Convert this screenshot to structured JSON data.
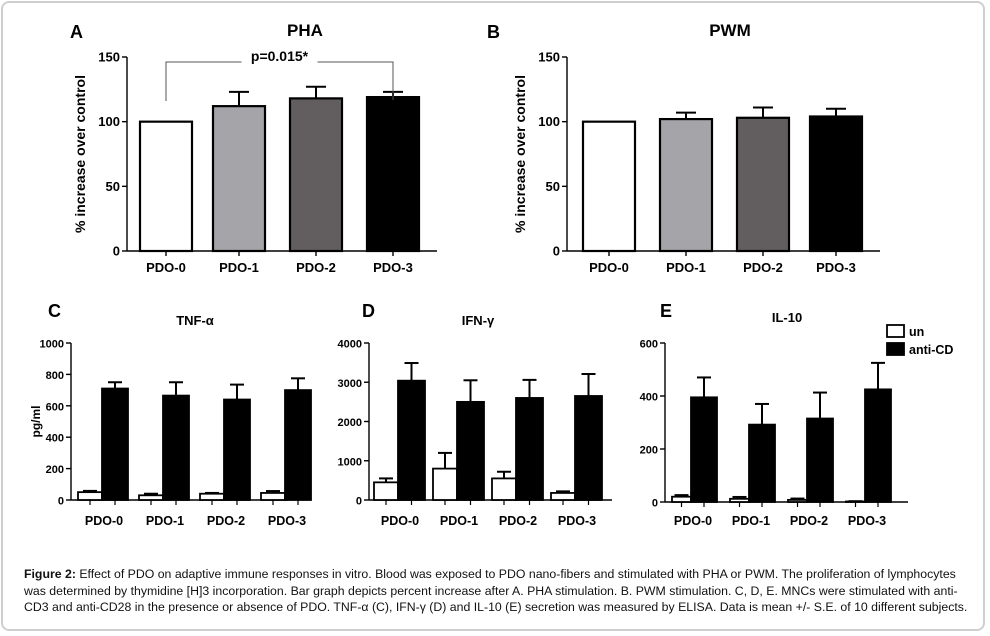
{
  "figure": {
    "caption_label": "Figure 2:",
    "caption_text": " Effect of PDO on adaptive immune responses in vitro. Blood was exposed to PDO nano-fibers and stimulated with PHA or PWM. The proliferation of lymphocytes was determined by thymidine [H]3 incorporation. Bar graph depicts percent increase after A. PHA stimulation. B. PWM stimulation. C, D, E. MNCs were stimulated with anti-CD3 and anti-CD28 in the presence or absence of PDO. TNF-α (C), IFN-γ (D) and IL-10 (E) secretion was measured by ELISA. Data is mean +/- S.E. of 10 different subjects."
  },
  "chart_data": [
    {
      "panel": "A",
      "type": "bar",
      "title": "PHA",
      "ylabel": "% increase over control",
      "xlabel": "",
      "categories": [
        "PDO-0",
        "PDO-1",
        "PDO-2",
        "PDO-3"
      ],
      "values": [
        100,
        112,
        118,
        119
      ],
      "errors": [
        0,
        11,
        9,
        4
      ],
      "bar_colors": [
        "#ffffff",
        "#a5a4a8",
        "#625d5e",
        "#000000"
      ],
      "ylim": [
        0,
        150
      ],
      "yticks": [
        0,
        50,
        100,
        150
      ],
      "annotation": {
        "text": "p=0.015*",
        "from": "PDO-0",
        "to": "PDO-3"
      },
      "grid": false
    },
    {
      "panel": "B",
      "type": "bar",
      "title": "PWM",
      "ylabel": "% increase over control",
      "xlabel": "",
      "categories": [
        "PDO-0",
        "PDO-1",
        "PDO-2",
        "PDO-3"
      ],
      "values": [
        100,
        102,
        103,
        104
      ],
      "errors": [
        0,
        5,
        8,
        6
      ],
      "bar_colors": [
        "#ffffff",
        "#a5a4a8",
        "#625d5e",
        "#000000"
      ],
      "ylim": [
        0,
        150
      ],
      "yticks": [
        0,
        50,
        100,
        150
      ],
      "grid": false
    },
    {
      "panel": "C",
      "type": "bar",
      "title": "TNF-α",
      "ylabel": "pg/ml",
      "xlabel": "",
      "categories": [
        "PDO-0",
        "PDO-1",
        "PDO-2",
        "PDO-3"
      ],
      "series": [
        {
          "name": "un",
          "color": "#ffffff",
          "values": [
            50,
            30,
            40,
            45
          ],
          "errors": [
            8,
            10,
            5,
            12
          ]
        },
        {
          "name": "anti-CD",
          "color": "#000000",
          "values": [
            710,
            665,
            640,
            700
          ],
          "errors": [
            40,
            85,
            95,
            75
          ]
        }
      ],
      "ylim": [
        0,
        1000
      ],
      "yticks": [
        0,
        200,
        400,
        600,
        800,
        1000
      ],
      "grid": false
    },
    {
      "panel": "D",
      "type": "bar",
      "title": "IFN-γ",
      "ylabel": "",
      "xlabel": "",
      "categories": [
        "PDO-0",
        "PDO-1",
        "PDO-2",
        "PDO-3"
      ],
      "series": [
        {
          "name": "un",
          "color": "#ffffff",
          "values": [
            450,
            800,
            550,
            180
          ],
          "errors": [
            100,
            400,
            170,
            40
          ]
        },
        {
          "name": "anti-CD",
          "color": "#000000",
          "values": [
            3040,
            2500,
            2600,
            2650
          ],
          "errors": [
            450,
            550,
            460,
            560
          ]
        }
      ],
      "ylim": [
        0,
        4000
      ],
      "yticks": [
        0,
        1000,
        2000,
        3000,
        4000
      ],
      "grid": false
    },
    {
      "panel": "E",
      "type": "bar",
      "title": "IL-10",
      "ylabel": "",
      "xlabel": "",
      "categories": [
        "PDO-0",
        "PDO-1",
        "PDO-2",
        "PDO-3"
      ],
      "series": [
        {
          "name": "un",
          "color": "#ffffff",
          "values": [
            20,
            12,
            8,
            2
          ],
          "errors": [
            6,
            7,
            5,
            1
          ]
        },
        {
          "name": "anti-CD",
          "color": "#000000",
          "values": [
            395,
            292,
            315,
            425
          ],
          "errors": [
            75,
            78,
            98,
            100
          ]
        }
      ],
      "ylim": [
        0,
        600
      ],
      "yticks": [
        0,
        200,
        400,
        600
      ],
      "legend": {
        "entries": [
          "un",
          "anti-CD"
        ],
        "position": "top-right"
      },
      "grid": false
    }
  ]
}
